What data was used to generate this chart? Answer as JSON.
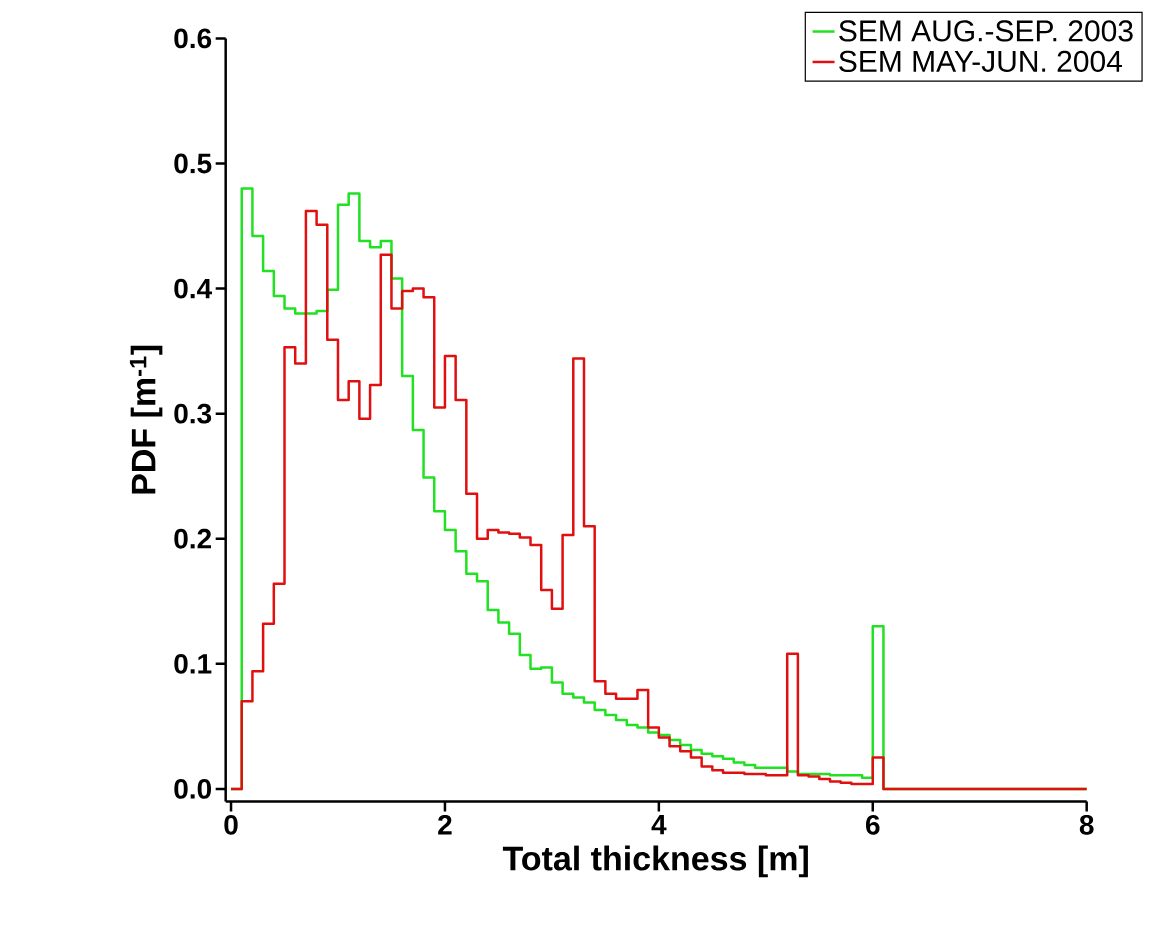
{
  "chart_data": {
    "type": "histogram",
    "xlabel": "Total thickness [m]",
    "ylabel": "PDF [m$^{-1}$]",
    "bins": [
      0,
      0.1,
      0.2,
      0.3,
      0.4,
      0.5,
      0.6,
      0.7,
      0.8,
      0.9,
      1,
      1.1,
      1.2,
      1.3,
      1.4,
      1.5,
      1.6,
      1.7,
      1.8,
      1.9,
      2,
      2.1,
      2.2,
      2.3,
      2.4,
      2.5,
      2.6,
      2.7,
      2.8,
      2.9,
      3,
      3.1,
      3.2,
      3.3,
      3.4,
      3.5,
      3.6,
      3.7,
      3.8,
      3.9,
      4,
      4.1,
      4.2,
      4.3,
      4.4,
      4.5,
      4.6,
      4.7,
      4.8,
      4.9,
      5,
      5.1,
      5.2,
      5.3,
      5.4,
      5.5,
      5.6,
      5.7,
      5.8,
      5.9,
      6,
      6.1,
      6.2,
      6.3,
      6.4,
      6.5,
      6.6,
      6.7,
      6.8,
      6.9,
      7,
      7.1,
      7.2,
      7.3,
      7.4,
      7.5,
      7.6,
      7.7,
      7.8,
      7.9,
      8
    ],
    "series": [
      {
        "name": "SEM AUG.-SEP. 2003",
        "color": "#22e022",
        "values": [
          0,
          0.48,
          0.442,
          0.414,
          0.394,
          0.384,
          0.38,
          0.38,
          0.382,
          0.399,
          0.467,
          0.476,
          0.438,
          0.433,
          0.438,
          0.408,
          0.33,
          0.287,
          0.249,
          0.222,
          0.207,
          0.19,
          0.172,
          0.166,
          0.143,
          0.133,
          0.124,
          0.107,
          0.096,
          0.097,
          0.085,
          0.076,
          0.073,
          0.069,
          0.063,
          0.059,
          0.055,
          0.051,
          0.049,
          0.045,
          0.043,
          0.039,
          0.035,
          0.031,
          0.028,
          0.026,
          0.024,
          0.021,
          0.019,
          0.017,
          0.017,
          0.017,
          0.014,
          0.012,
          0.012,
          0.012,
          0.011,
          0.011,
          0.011,
          0.009,
          0.13,
          0,
          0,
          0,
          0,
          0,
          0,
          0,
          0,
          0,
          0,
          0,
          0,
          0,
          0,
          0,
          0,
          0,
          0,
          0
        ]
      },
      {
        "name": "SEM MAY-JUN. 2004",
        "color": "#e01010",
        "values": [
          0,
          0.07,
          0.094,
          0.132,
          0.164,
          0.353,
          0.34,
          0.462,
          0.451,
          0.359,
          0.311,
          0.326,
          0.296,
          0.323,
          0.427,
          0.384,
          0.398,
          0.4,
          0.393,
          0.305,
          0.346,
          0.311,
          0.236,
          0.2,
          0.207,
          0.205,
          0.204,
          0.201,
          0.195,
          0.159,
          0.144,
          0.203,
          0.344,
          0.21,
          0.086,
          0.076,
          0.072,
          0.072,
          0.079,
          0.049,
          0.041,
          0.034,
          0.03,
          0.025,
          0.018,
          0.015,
          0.013,
          0.013,
          0.012,
          0.012,
          0.011,
          0.011,
          0.108,
          0.011,
          0.01,
          0.008,
          0.006,
          0.005,
          0.004,
          0.004,
          0.025,
          0,
          0,
          0,
          0,
          0,
          0,
          0,
          0,
          0,
          0,
          0,
          0,
          0,
          0,
          0,
          0,
          0,
          0,
          0
        ]
      }
    ],
    "xlim": [
      -0.05,
      8
    ],
    "ylim": [
      -0.01,
      0.6
    ],
    "xticks": [
      0,
      2,
      4,
      6,
      8
    ],
    "yticks": [
      {
        "value": 0,
        "label": "0.0"
      },
      {
        "value": 0.1,
        "label": "0.1"
      },
      {
        "value": 0.2,
        "label": "0.2"
      },
      {
        "value": 0.3,
        "label": "0.3"
      },
      {
        "value": 0.4,
        "label": "0.4"
      },
      {
        "value": 0.5,
        "label": "0.5"
      },
      {
        "value": 0.6,
        "label": "0.6"
      }
    ],
    "legend": "top right",
    "grid": false
  }
}
